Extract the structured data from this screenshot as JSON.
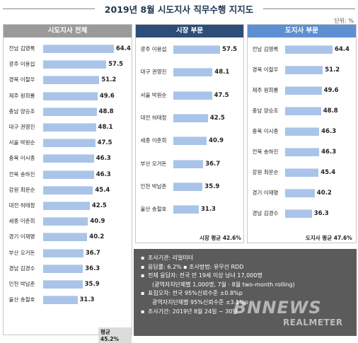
{
  "title": "2019년 8월 시도지사 직무수행 지지도",
  "unit": "단위: %",
  "colors": {
    "bar": "#a9c4e8",
    "head_overall": "#9a9a9a",
    "head_mayor": "#2c4e78",
    "head_governor": "#5d8fd2",
    "info_bg": "#5b5b5b"
  },
  "chart_data": [
    {
      "type": "bar",
      "title": "시도지사 전체",
      "orientation": "horizontal",
      "categories": [
        "전남 김영록",
        "광주 이용섭",
        "경북 이철우",
        "제주 원희룡",
        "충남 양승조",
        "대구 권영진",
        "서울 박원순",
        "충북 이시종",
        "전북 송하진",
        "강원 최문순",
        "대전 허태정",
        "세종 이춘희",
        "경기 이재명",
        "부산 오거돈",
        "경남 김경수",
        "인천 박남춘",
        "울산 송철호"
      ],
      "values": [
        64.4,
        57.5,
        51.2,
        49.6,
        48.8,
        48.1,
        47.5,
        46.3,
        46.3,
        45.4,
        42.5,
        40.9,
        40.2,
        36.7,
        36.3,
        35.9,
        31.3
      ],
      "average_label": "평균 45.2%"
    },
    {
      "type": "bar",
      "title": "시장 부문",
      "orientation": "horizontal",
      "categories": [
        "광주 이용섭",
        "대구 권영진",
        "서울 박원순",
        "대전 허태정",
        "세종 이춘희",
        "부산 오거돈",
        "인천 박남춘",
        "울산 송철호"
      ],
      "values": [
        57.5,
        48.1,
        47.5,
        42.5,
        40.9,
        36.7,
        35.9,
        31.3
      ],
      "average_label": "시장 평균 42.6%"
    },
    {
      "type": "bar",
      "title": "도지사 부문",
      "orientation": "horizontal",
      "categories": [
        "전남 김영록",
        "경북 이철우",
        "제주 원희룡",
        "충남 양승조",
        "충북 이시종",
        "전북 송하진",
        "강원 최문순",
        "경기 이재명",
        "경남 김경수"
      ],
      "values": [
        64.4,
        51.2,
        49.6,
        48.8,
        46.3,
        46.3,
        45.4,
        40.2,
        36.3
      ],
      "average_label": "도지사 평균 47.6%"
    }
  ],
  "survey_info": [
    {
      "bullet": "▪",
      "text": "조사기관: 리얼미터"
    },
    {
      "bullet": "▪",
      "text": "응답률: 6.2% ▪ 조사방법: 유무선 RDD"
    },
    {
      "bullet": "▪",
      "text": "전체 응답자: 전국 만 19세 이상 남녀 17,000명"
    },
    {
      "bullet": "",
      "text": "(광역자치단체별 1,000명, 7월 · 8월 two-month rolling)"
    },
    {
      "bullet": "▪",
      "text": "표집오차: 전국 95%신뢰수준 ±0.8%p"
    },
    {
      "bullet": "",
      "text": "광역자치단체별 95%신뢰수준 ±3.1%p"
    },
    {
      "bullet": "▪",
      "text": "조사기간: 2019년 8월 24일 ~ 30일"
    }
  ],
  "watermark": {
    "main": "BNNEWS",
    "sub": "REALMETER"
  }
}
